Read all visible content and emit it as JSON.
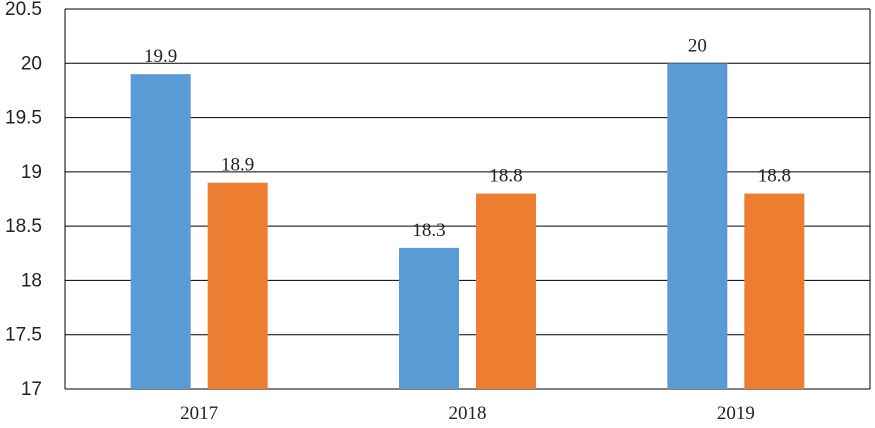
{
  "chart_data": {
    "type": "bar",
    "title": "",
    "xlabel": "",
    "ylabel": "",
    "categories": [
      "2017",
      "2018",
      "2019"
    ],
    "series": [
      {
        "values": [
          19.9,
          18.3,
          20
        ],
        "color": "#5B9BD5"
      },
      {
        "values": [
          18.9,
          18.8,
          18.8
        ],
        "color": "#ED7D31"
      }
    ],
    "ylim": [
      17,
      20.5
    ],
    "yticks": [
      "17",
      "17.5",
      "18",
      "18.5",
      "19",
      "19.5",
      "20",
      "20.5"
    ],
    "grid": true,
    "legend": "none"
  }
}
